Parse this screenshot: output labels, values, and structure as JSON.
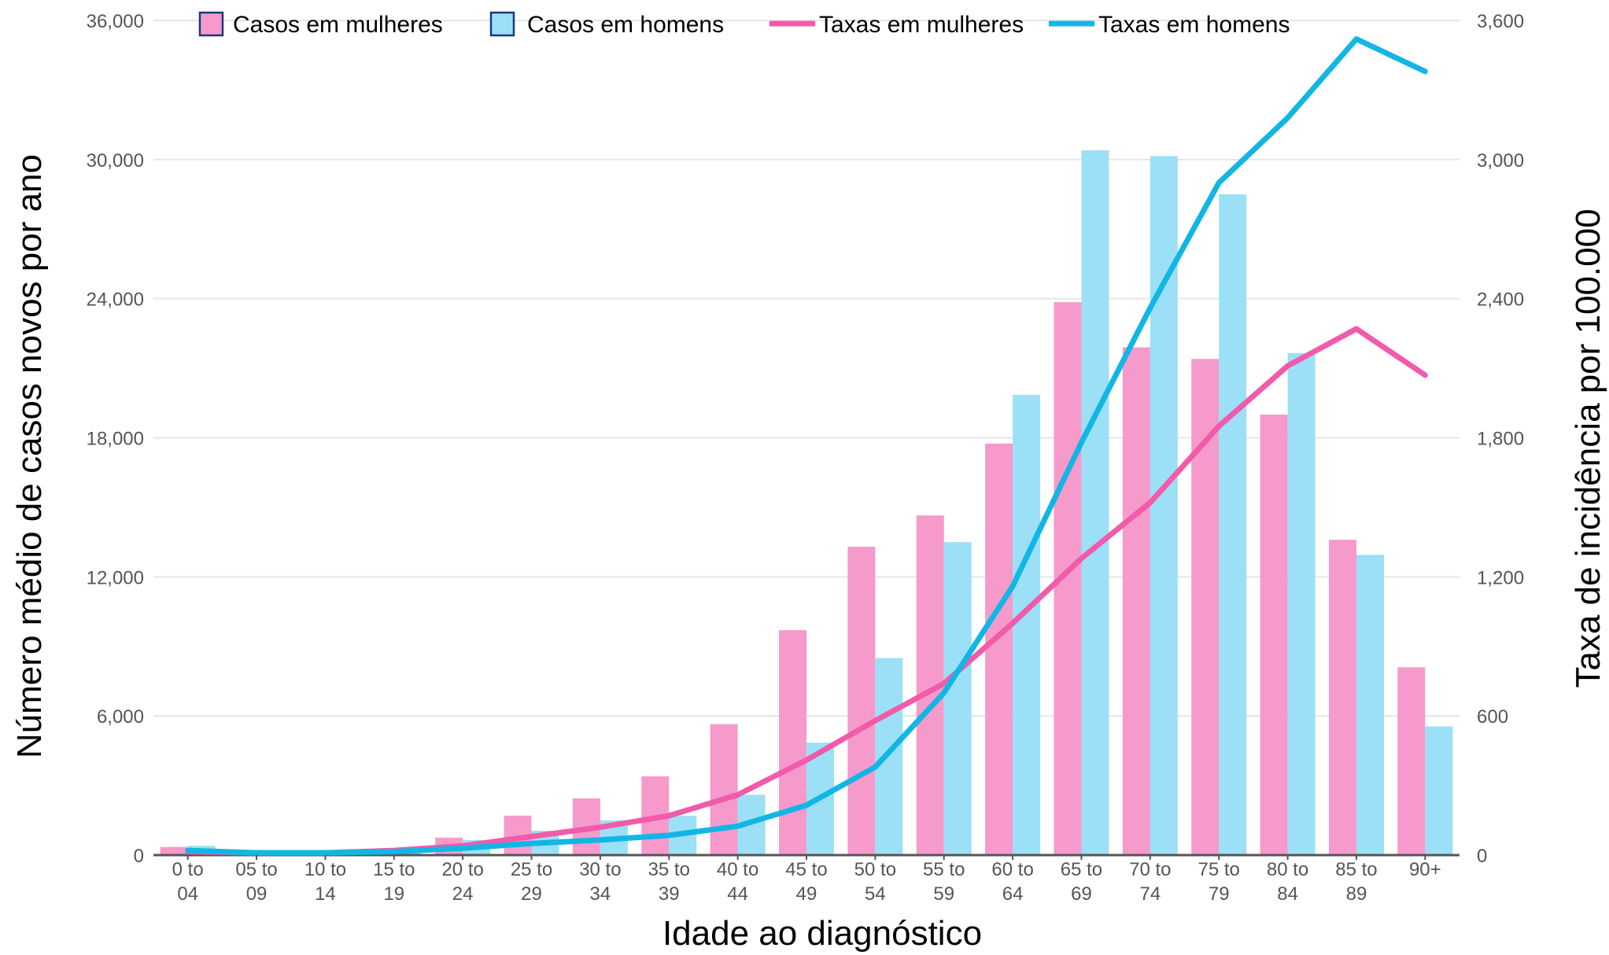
{
  "chart_data": {
    "type": "bar",
    "title": "",
    "xlabel": "Idade ao diagnóstico",
    "ylabel": "Número médio de casos novos por ano",
    "ylabel_right": "Taxa de incidência por 100.000",
    "ylim": [
      0,
      36000
    ],
    "ylim_right": [
      0,
      3600
    ],
    "yticks": [
      "0",
      "6,000",
      "12,000",
      "18,000",
      "24,000",
      "30,000",
      "36,000"
    ],
    "yticks_right": [
      "0",
      "600",
      "1,200",
      "1,800",
      "2,400",
      "3,000",
      "3,600"
    ],
    "grid": true,
    "legend_position": "top",
    "categories": [
      [
        "0 to",
        "04"
      ],
      [
        "05 to",
        "09"
      ],
      [
        "10 to",
        "14"
      ],
      [
        "15 to",
        "19"
      ],
      [
        "20 to",
        "24"
      ],
      [
        "25 to",
        "29"
      ],
      [
        "30 to",
        "34"
      ],
      [
        "35 to",
        "39"
      ],
      [
        "40 to",
        "44"
      ],
      [
        "45 to",
        "49"
      ],
      [
        "50 to",
        "54"
      ],
      [
        "55 to",
        "59"
      ],
      [
        "60 to",
        "64"
      ],
      [
        "65 to",
        "69"
      ],
      [
        "70 to",
        "74"
      ],
      [
        "75 to",
        "79"
      ],
      [
        "80 to",
        "84"
      ],
      [
        "85 to",
        "89"
      ],
      [
        "90+",
        ""
      ]
    ],
    "series": [
      {
        "name": "Casos em mulheres",
        "kind": "bar",
        "axis": "left",
        "color": "#f59acb",
        "values": [
          350,
          100,
          100,
          200,
          750,
          1700,
          2450,
          3400,
          5650,
          9700,
          13300,
          14650,
          17750,
          23850,
          21900,
          21400,
          19000,
          13600,
          8100
        ]
      },
      {
        "name": "Casos em homens",
        "kind": "bar",
        "axis": "left",
        "color": "#9be0f7",
        "values": [
          400,
          100,
          100,
          250,
          650,
          1050,
          1500,
          1700,
          2600,
          4850,
          8500,
          13500,
          19850,
          30400,
          30150,
          28500,
          21650,
          12950,
          5550
        ]
      },
      {
        "name": "Taxas em mulheres",
        "kind": "line",
        "axis": "right",
        "color": "#f25aaa",
        "values": [
          15,
          10,
          10,
          20,
          40,
          80,
          120,
          170,
          260,
          410,
          580,
          740,
          1000,
          1280,
          1520,
          1850,
          2110,
          2270,
          2070
        ]
      },
      {
        "name": "Taxas em homens",
        "kind": "line",
        "axis": "right",
        "color": "#12b6e4",
        "values": [
          20,
          10,
          10,
          15,
          30,
          50,
          65,
          85,
          125,
          215,
          380,
          700,
          1160,
          1780,
          2360,
          2900,
          3180,
          3520,
          3380
        ]
      }
    ]
  }
}
